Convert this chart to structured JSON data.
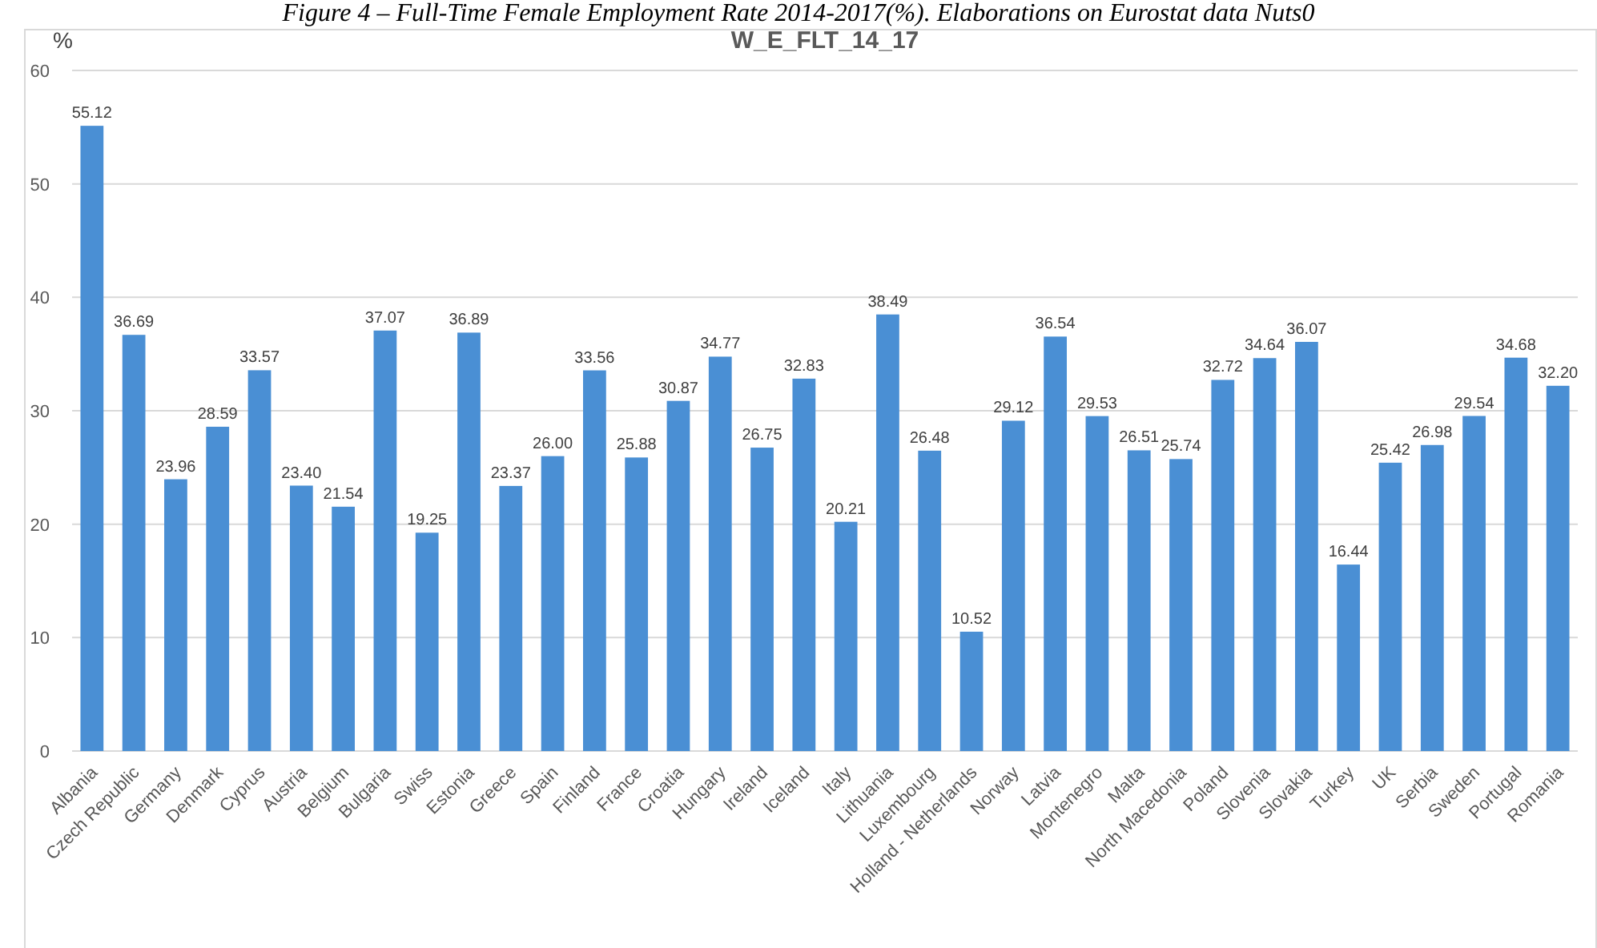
{
  "chart_data": {
    "type": "bar",
    "title": "W_E_FLT_14_17",
    "ylabel": "%",
    "annotations": [
      "Figure 4 – Full-Time Female Employment Rate 2014-2017(%). Elaborations on Eurostat data Nuts0"
    ],
    "categories": [
      "Albania",
      "Czech Republic",
      "Germany",
      "Denmark",
      "Cyprus",
      "Austria",
      "Belgium",
      "Bulgaria",
      "Swiss",
      "Estonia",
      "Greece",
      "Spain",
      "Finland",
      "France",
      "Croatia",
      "Hungary",
      "Ireland",
      "Iceland",
      "Italy",
      "Lithuania",
      "Luxembourg",
      "Holland - Netherlands",
      "Norway",
      "Latvia",
      "Montenegro",
      "Malta",
      "North Macedonia",
      "Poland",
      "Slovenia",
      "Slovakia",
      "Turkey",
      "UK",
      "Serbia",
      "Sweden",
      "Portugal",
      "Romania"
    ],
    "values": [
      55.12,
      36.69,
      23.96,
      28.59,
      33.57,
      23.4,
      21.54,
      37.07,
      19.25,
      36.89,
      23.37,
      26.0,
      33.56,
      25.88,
      30.87,
      34.77,
      26.75,
      32.83,
      20.21,
      38.49,
      26.48,
      10.52,
      29.12,
      36.54,
      29.53,
      26.51,
      25.74,
      32.72,
      34.64,
      36.07,
      16.44,
      25.42,
      26.98,
      29.54,
      34.68,
      32.2
    ],
    "value_labels": [
      "55.12",
      "36.69",
      "23.96",
      "28.59",
      "33.57",
      "23.40",
      "21.54",
      "37.07",
      "19.25",
      "36.89",
      "23.37",
      "26.00",
      "33.56",
      "25.88",
      "30.87",
      "34.77",
      "26.75",
      "32.83",
      "20.21",
      "38.49",
      "26.48",
      "10.52",
      "29.12",
      "36.54",
      "29.53",
      "26.51",
      "25.74",
      "32.72",
      "34.64",
      "36.07",
      "16.44",
      "25.42",
      "26.98",
      "29.54",
      "34.68",
      "32.20"
    ],
    "color": "#4a8fd4",
    "ylim": [
      0,
      60
    ],
    "yticks": [
      0,
      10,
      20,
      30,
      40,
      50,
      60
    ],
    "grid": "y"
  }
}
